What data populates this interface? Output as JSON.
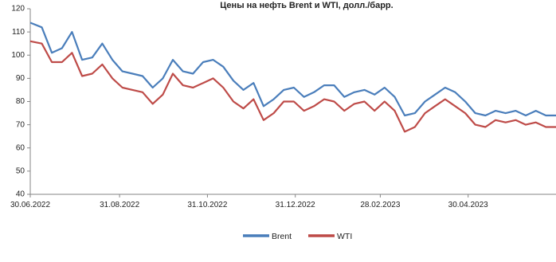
{
  "chart_data": {
    "type": "line",
    "title": "Цены на нефть Brent и WTI, долл./барр.",
    "xlabel": "",
    "ylabel": "",
    "ylim": [
      40,
      120
    ],
    "yticks": [
      40,
      50,
      60,
      70,
      80,
      90,
      100,
      110,
      120
    ],
    "x_start": "30.06.2022",
    "x_end": "30.06.2023",
    "xtick_labels": [
      "30.06.2022",
      "31.08.2022",
      "31.10.2022",
      "31.12.2022",
      "28.02.2023",
      "30.04.2023"
    ],
    "grid": false,
    "legend_position": "bottom",
    "dates": [
      "30.06.2022",
      "08.07.2022",
      "15.07.2022",
      "22.07.2022",
      "29.07.2022",
      "05.08.2022",
      "12.08.2022",
      "19.08.2022",
      "26.08.2022",
      "02.09.2022",
      "09.09.2022",
      "16.09.2022",
      "23.09.2022",
      "30.09.2022",
      "07.10.2022",
      "14.10.2022",
      "21.10.2022",
      "28.10.2022",
      "04.11.2022",
      "11.11.2022",
      "18.11.2022",
      "25.11.2022",
      "02.12.2022",
      "09.12.2022",
      "16.12.2022",
      "23.12.2022",
      "30.12.2022",
      "06.01.2023",
      "13.01.2023",
      "20.01.2023",
      "27.01.2023",
      "03.02.2023",
      "10.02.2023",
      "17.02.2023",
      "24.02.2023",
      "03.03.2023",
      "10.03.2023",
      "17.03.2023",
      "24.03.2023",
      "31.03.2023",
      "07.04.2023",
      "14.04.2023",
      "21.04.2023",
      "28.04.2023",
      "05.05.2023",
      "12.05.2023",
      "19.05.2023",
      "26.05.2023",
      "02.06.2023",
      "09.06.2023",
      "16.06.2023",
      "23.06.2023",
      "30.06.2023"
    ],
    "series": [
      {
        "name": "Brent",
        "color": "#4a7ebb",
        "values": [
          114,
          112,
          101,
          103,
          110,
          98,
          99,
          105,
          98,
          93,
          92,
          91,
          86,
          90,
          98,
          93,
          92,
          97,
          98,
          95,
          89,
          85,
          88,
          78,
          81,
          85,
          86,
          82,
          84,
          87,
          87,
          82,
          84,
          85,
          83,
          86,
          82,
          74,
          75,
          80,
          83,
          86,
          84,
          80,
          75,
          74,
          76,
          75,
          76,
          74,
          76,
          74,
          74
        ]
      },
      {
        "name": "WTI",
        "color": "#be4b48",
        "values": [
          106,
          105,
          97,
          97,
          101,
          91,
          92,
          96,
          90,
          86,
          85,
          84,
          79,
          83,
          92,
          87,
          86,
          88,
          90,
          86,
          80,
          77,
          81,
          72,
          75,
          80,
          80,
          76,
          78,
          81,
          80,
          76,
          79,
          80,
          76,
          80,
          76,
          67,
          69,
          75,
          78,
          81,
          78,
          75,
          70,
          69,
          72,
          71,
          72,
          70,
          71,
          69,
          69
        ]
      }
    ]
  }
}
